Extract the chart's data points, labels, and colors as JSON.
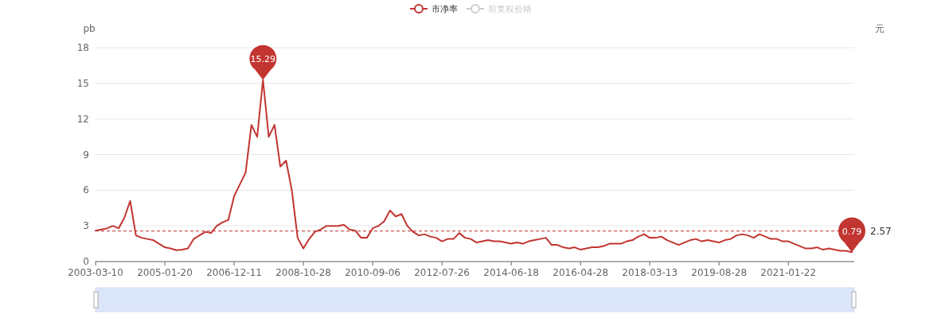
{
  "chart_data": {
    "type": "line",
    "ylabel": "pb",
    "y2label": "元",
    "categories": [
      "2003-03-10",
      null,
      null,
      null,
      null,
      null,
      null,
      null,
      null,
      null,
      null,
      null,
      "2005-01-20",
      null,
      null,
      null,
      null,
      null,
      null,
      null,
      null,
      null,
      null,
      null,
      "2006-12-11",
      null,
      null,
      null,
      null,
      null,
      null,
      null,
      null,
      null,
      null,
      null,
      "2008-10-28",
      null,
      null,
      null,
      null,
      null,
      null,
      null,
      null,
      null,
      null,
      null,
      "2010-09-06",
      null,
      null,
      null,
      null,
      null,
      null,
      null,
      null,
      null,
      null,
      null,
      "2012-07-26",
      null,
      null,
      null,
      null,
      null,
      null,
      null,
      null,
      null,
      null,
      null,
      "2014-06-18",
      null,
      null,
      null,
      null,
      null,
      null,
      null,
      null,
      null,
      null,
      null,
      "2016-04-28",
      null,
      null,
      null,
      null,
      null,
      null,
      null,
      null,
      null,
      null,
      null,
      "2018-03-13",
      null,
      null,
      null,
      null,
      null,
      null,
      null,
      null,
      null,
      null,
      null,
      "2019-08-28",
      null,
      null,
      null,
      null,
      null,
      null,
      null,
      null,
      null,
      null,
      null,
      "2021-01-22",
      null,
      null,
      null,
      null,
      null,
      null,
      null,
      null,
      null,
      null,
      null
    ],
    "series": [
      {
        "name": "市净率",
        "color": "#c23531",
        "values": [
          2.6,
          2.7,
          2.8,
          3.0,
          2.8,
          3.7,
          5.1,
          2.2,
          2.0,
          1.9,
          1.8,
          1.5,
          1.2,
          1.1,
          0.95,
          1.0,
          1.1,
          1.9,
          2.2,
          2.5,
          2.4,
          3.0,
          3.3,
          3.5,
          5.5,
          6.5,
          7.5,
          11.5,
          10.5,
          15.29,
          10.5,
          11.5,
          8.0,
          8.5,
          6.0,
          2.0,
          1.1,
          1.9,
          2.5,
          2.7,
          3.0,
          3.0,
          3.0,
          3.1,
          2.7,
          2.6,
          2.0,
          2.0,
          2.8,
          3.0,
          3.4,
          4.3,
          3.8,
          4.0,
          3.0,
          2.5,
          2.2,
          2.3,
          2.1,
          2.0,
          1.7,
          1.9,
          1.9,
          2.4,
          2.0,
          1.9,
          1.6,
          1.7,
          1.8,
          1.7,
          1.7,
          1.6,
          1.5,
          1.6,
          1.5,
          1.7,
          1.8,
          1.9,
          2.0,
          1.4,
          1.4,
          1.2,
          1.1,
          1.2,
          1.0,
          1.1,
          1.2,
          1.2,
          1.3,
          1.5,
          1.5,
          1.5,
          1.7,
          1.8,
          2.1,
          2.3,
          2.0,
          2.0,
          2.1,
          1.8,
          1.6,
          1.4,
          1.6,
          1.8,
          1.9,
          1.7,
          1.8,
          1.7,
          1.6,
          1.8,
          1.9,
          2.2,
          2.3,
          2.2,
          2.0,
          2.3,
          2.1,
          1.9,
          1.9,
          1.7,
          1.7,
          1.5,
          1.3,
          1.1,
          1.1,
          1.2,
          1.0,
          1.1,
          1.0,
          0.9,
          0.9,
          0.79
        ]
      },
      {
        "name": "前复权价格",
        "color": "#cccccc",
        "values": [
          null,
          null,
          null,
          null,
          null,
          null,
          null,
          null,
          null,
          null,
          null,
          null,
          null,
          null,
          null,
          null,
          null,
          null,
          null,
          null,
          null,
          null,
          null,
          null,
          null,
          null,
          null,
          null,
          null,
          null,
          null,
          null,
          null,
          null,
          null,
          null,
          null,
          null,
          null,
          null,
          null,
          null,
          null,
          null,
          null,
          null,
          null,
          null,
          null,
          null,
          null,
          null,
          null,
          null,
          null,
          null,
          null,
          null,
          null,
          null,
          null,
          null,
          null,
          null,
          null,
          null,
          null,
          null,
          null,
          null,
          null,
          null,
          null,
          null,
          null,
          null,
          null,
          null,
          null,
          null,
          null,
          null,
          null,
          null,
          null,
          null,
          null,
          null,
          null,
          null,
          null,
          null,
          null,
          null,
          null,
          null,
          null,
          null,
          null,
          null,
          null,
          null,
          null,
          null,
          null,
          null,
          null,
          null,
          null,
          null,
          null,
          null,
          null,
          null,
          null,
          null,
          null,
          null,
          null,
          null,
          null,
          null,
          null,
          null,
          null,
          null,
          null,
          null,
          null,
          null,
          null,
          null
        ]
      }
    ],
    "ylim": [
      0,
      18
    ],
    "yticks": [
      0,
      3,
      6,
      9,
      12,
      15,
      18
    ],
    "grid": "y",
    "legend": "top",
    "marker": "none",
    "ref_lines": [
      {
        "axis": "y",
        "value": 2.57,
        "label": "2.57",
        "color": "#c23531",
        "line_style": "dashed"
      }
    ],
    "annotations": [
      {
        "text": "15.29",
        "y": 15.29
      },
      {
        "text": "0.79",
        "y": 0.79
      }
    ]
  }
}
